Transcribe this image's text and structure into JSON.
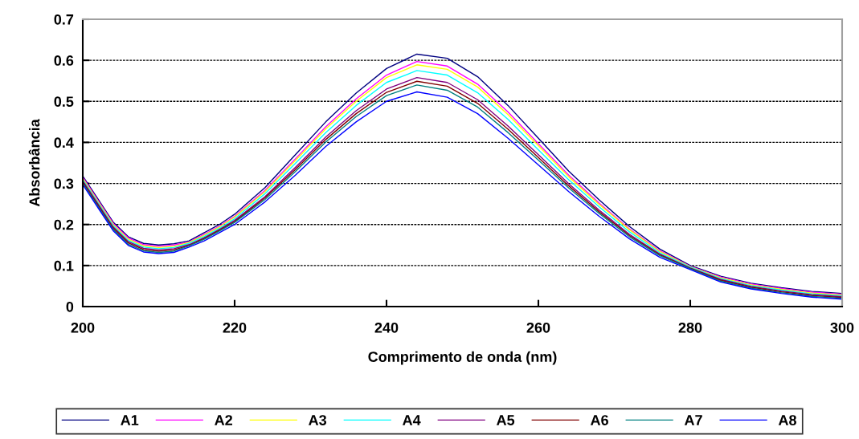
{
  "chart_data": {
    "type": "line",
    "xlabel": "Comprimento de onda (nm)",
    "ylabel": "Absorbância",
    "x": [
      200,
      202,
      204,
      206,
      208,
      210,
      212,
      214,
      216,
      218,
      220,
      224,
      228,
      232,
      236,
      240,
      244,
      248,
      252,
      256,
      260,
      264,
      268,
      272,
      276,
      280,
      284,
      288,
      292,
      296,
      300
    ],
    "xlim": [
      200,
      300
    ],
    "xticks": [
      200,
      220,
      240,
      260,
      280,
      300
    ],
    "ylim": [
      0,
      0.7
    ],
    "yticks": [
      0,
      0.1,
      0.2,
      0.3,
      0.4,
      0.5,
      0.6,
      0.7
    ],
    "grid": "y",
    "legend": "bottom",
    "marker": "none",
    "line_style": "solid",
    "series": [
      {
        "name": "A1",
        "color": "#000080",
        "values": [
          0.318,
          0.262,
          0.206,
          0.17,
          0.154,
          0.15,
          0.153,
          0.16,
          0.18,
          0.2,
          0.225,
          0.29,
          0.37,
          0.45,
          0.52,
          0.58,
          0.615,
          0.605,
          0.56,
          0.49,
          0.41,
          0.33,
          0.26,
          0.195,
          0.14,
          0.1,
          0.074,
          0.057,
          0.046,
          0.037,
          0.032
        ]
      },
      {
        "name": "A2",
        "color": "#ff00ff",
        "values": [
          0.315,
          0.259,
          0.203,
          0.167,
          0.151,
          0.147,
          0.15,
          0.157,
          0.176,
          0.196,
          0.22,
          0.283,
          0.36,
          0.438,
          0.506,
          0.564,
          0.597,
          0.586,
          0.542,
          0.474,
          0.397,
          0.32,
          0.252,
          0.189,
          0.136,
          0.098,
          0.072,
          0.055,
          0.044,
          0.035,
          0.03
        ]
      },
      {
        "name": "A3",
        "color": "#ffff00",
        "values": [
          0.312,
          0.256,
          0.2,
          0.164,
          0.148,
          0.144,
          0.147,
          0.156,
          0.174,
          0.194,
          0.218,
          0.28,
          0.356,
          0.433,
          0.5,
          0.558,
          0.589,
          0.578,
          0.535,
          0.468,
          0.392,
          0.316,
          0.249,
          0.187,
          0.134,
          0.097,
          0.07,
          0.053,
          0.042,
          0.033,
          0.028
        ]
      },
      {
        "name": "A4",
        "color": "#00ffff",
        "values": [
          0.309,
          0.253,
          0.197,
          0.161,
          0.145,
          0.141,
          0.144,
          0.154,
          0.171,
          0.191,
          0.214,
          0.275,
          0.349,
          0.424,
          0.49,
          0.546,
          0.575,
          0.564,
          0.521,
          0.456,
          0.382,
          0.309,
          0.243,
          0.182,
          0.131,
          0.096,
          0.068,
          0.051,
          0.04,
          0.031,
          0.026
        ]
      },
      {
        "name": "A5",
        "color": "#800080",
        "values": [
          0.306,
          0.25,
          0.194,
          0.158,
          0.142,
          0.138,
          0.141,
          0.151,
          0.168,
          0.188,
          0.21,
          0.268,
          0.339,
          0.413,
          0.477,
          0.53,
          0.558,
          0.546,
          0.504,
          0.44,
          0.37,
          0.299,
          0.235,
          0.176,
          0.128,
          0.094,
          0.066,
          0.049,
          0.038,
          0.029,
          0.024
        ]
      },
      {
        "name": "A6",
        "color": "#800000",
        "values": [
          0.303,
          0.247,
          0.191,
          0.155,
          0.139,
          0.135,
          0.138,
          0.149,
          0.166,
          0.186,
          0.207,
          0.265,
          0.334,
          0.407,
          0.47,
          0.522,
          0.549,
          0.537,
          0.495,
          0.432,
          0.363,
          0.294,
          0.231,
          0.173,
          0.126,
          0.093,
          0.064,
          0.047,
          0.036,
          0.027,
          0.022
        ]
      },
      {
        "name": "A7",
        "color": "#008080",
        "values": [
          0.3,
          0.244,
          0.188,
          0.152,
          0.136,
          0.132,
          0.135,
          0.148,
          0.164,
          0.184,
          0.205,
          0.261,
          0.329,
          0.401,
          0.463,
          0.514,
          0.54,
          0.527,
          0.486,
          0.424,
          0.357,
          0.289,
          0.227,
          0.17,
          0.124,
          0.092,
          0.062,
          0.045,
          0.034,
          0.025,
          0.02
        ]
      },
      {
        "name": "A8",
        "color": "#0000ff",
        "values": [
          0.297,
          0.241,
          0.185,
          0.149,
          0.133,
          0.129,
          0.132,
          0.145,
          0.16,
          0.18,
          0.2,
          0.255,
          0.32,
          0.39,
          0.45,
          0.5,
          0.523,
          0.51,
          0.47,
          0.41,
          0.345,
          0.28,
          0.22,
          0.165,
          0.12,
          0.09,
          0.06,
          0.043,
          0.032,
          0.023,
          0.018
        ]
      }
    ]
  }
}
